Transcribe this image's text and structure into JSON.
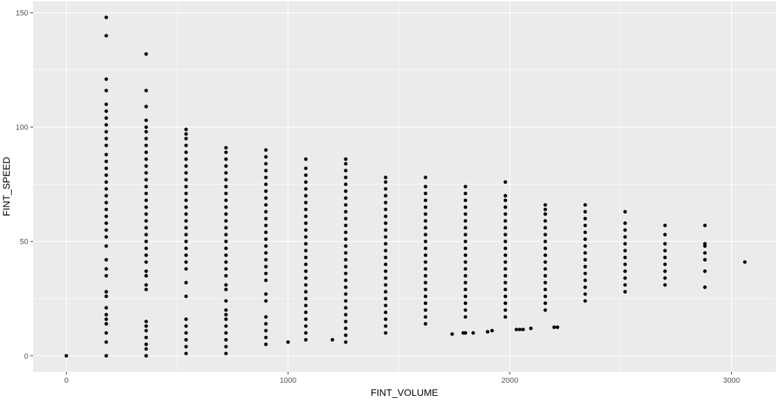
{
  "chart_data": {
    "type": "scatter",
    "title": "",
    "xlabel": "FINT_VOLUME",
    "ylabel": "FINT_SPEED",
    "xlim": [
      -150,
      3200
    ],
    "ylim": [
      -7,
      155
    ],
    "x_ticks": [
      0,
      1000,
      2000,
      3000
    ],
    "y_ticks": [
      0,
      50,
      100,
      150
    ],
    "x_tick_labels": [
      "0",
      "1000",
      "2000",
      "3000"
    ],
    "y_tick_labels": [
      "0",
      "50",
      "100",
      "150"
    ],
    "grid": true,
    "theme": "ggplot2 grey",
    "colors": {
      "panel": "#ebebeb",
      "grid": "#ffffff",
      "point": "#000000",
      "tick_text": "#4d4d4d"
    },
    "points": [
      {
        "x": 0,
        "y": 0
      },
      {
        "x": 180,
        "y": [
          0,
          6,
          10,
          14,
          16,
          18,
          21,
          26,
          28,
          35,
          38,
          42,
          48,
          52,
          55,
          58,
          61,
          64,
          67,
          70,
          73,
          76,
          79,
          82,
          85,
          88,
          92,
          95,
          98,
          101,
          104,
          107,
          110,
          116,
          121,
          140,
          148
        ]
      },
      {
        "x": 360,
        "y": [
          0,
          3,
          5,
          8,
          11,
          13,
          15,
          29,
          31,
          35,
          37,
          41,
          44,
          47,
          50,
          53,
          56,
          59,
          62,
          65,
          68,
          71,
          74,
          77,
          80,
          83,
          86,
          89,
          92,
          95,
          98,
          100,
          103,
          109,
          116,
          132
        ]
      },
      {
        "x": 540,
        "y": [
          1,
          4,
          7,
          10,
          13,
          16,
          26,
          32,
          38,
          41,
          44,
          47,
          50,
          53,
          56,
          59,
          62,
          65,
          68,
          71,
          74,
          77,
          80,
          83,
          86,
          89,
          92,
          95,
          97,
          99
        ]
      },
      {
        "x": 720,
        "y": [
          1,
          4,
          7,
          10,
          13,
          16,
          18,
          20,
          24,
          29,
          31,
          35,
          38,
          41,
          44,
          47,
          50,
          53,
          56,
          59,
          62,
          65,
          68,
          71,
          74,
          77,
          80,
          83,
          86,
          89,
          91
        ]
      },
      {
        "x": 900,
        "y": [
          5,
          8,
          11,
          14,
          17,
          24,
          27,
          33,
          36,
          39,
          42,
          45,
          48,
          51,
          54,
          57,
          60,
          63,
          66,
          69,
          72,
          75,
          78,
          81,
          84,
          87,
          90
        ]
      },
      {
        "x": 1000,
        "y": 6
      },
      {
        "x": 1080,
        "y": [
          7,
          10,
          13,
          16,
          19,
          22,
          25,
          28,
          31,
          34,
          37,
          40,
          43,
          46,
          49,
          52,
          55,
          58,
          61,
          64,
          67,
          70,
          73,
          76,
          79,
          82,
          86
        ]
      },
      {
        "x": 1200,
        "y": 7
      },
      {
        "x": 1260,
        "y": [
          6,
          9,
          12,
          15,
          18,
          21,
          24,
          27,
          30,
          33,
          36,
          39,
          42,
          45,
          48,
          51,
          54,
          57,
          60,
          63,
          66,
          69,
          72,
          75,
          78,
          81,
          84,
          86
        ]
      },
      {
        "x": 1440,
        "y": [
          10,
          13,
          16,
          19,
          22,
          25,
          28,
          31,
          34,
          37,
          40,
          43,
          46,
          49,
          52,
          55,
          58,
          61,
          64,
          67,
          70,
          73,
          76,
          78
        ]
      },
      {
        "x": 1620,
        "y": [
          14,
          17,
          20,
          23,
          26,
          29,
          32,
          35,
          38,
          41,
          44,
          47,
          50,
          53,
          56,
          59,
          62,
          65,
          68,
          71,
          74,
          78
        ]
      },
      {
        "x": 1740,
        "y": 9.5
      },
      {
        "x": 1790,
        "y": 10
      },
      {
        "x": 1800,
        "y": [
          10,
          17,
          20,
          23,
          26,
          29,
          32,
          35,
          38,
          41,
          44,
          47,
          50,
          53,
          56,
          59,
          62,
          65,
          68,
          71,
          74
        ]
      },
      {
        "x": 1835,
        "y": 10
      },
      {
        "x": 1900,
        "y": 10.5
      },
      {
        "x": 1920,
        "y": 11
      },
      {
        "x": 1980,
        "y": [
          17,
          20,
          23,
          26,
          29,
          32,
          35,
          38,
          41,
          44,
          47,
          50,
          53,
          56,
          59,
          62,
          65,
          68,
          70,
          76
        ]
      },
      {
        "x": 2030,
        "y": 11.5
      },
      {
        "x": 2045,
        "y": 11.5
      },
      {
        "x": 2060,
        "y": 11.5
      },
      {
        "x": 2095,
        "y": 12
      },
      {
        "x": 2160,
        "y": [
          20,
          23,
          26,
          29,
          32,
          35,
          38,
          41,
          44,
          47,
          50,
          53,
          56,
          59,
          62,
          64,
          66
        ]
      },
      {
        "x": 2200,
        "y": 12.5
      },
      {
        "x": 2215,
        "y": 12.5
      },
      {
        "x": 2340,
        "y": [
          24,
          27,
          30,
          33,
          36,
          39,
          42,
          45,
          48,
          51,
          54,
          57,
          60,
          63,
          66
        ]
      },
      {
        "x": 2520,
        "y": [
          28,
          31,
          34,
          37,
          40,
          43,
          46,
          49,
          52,
          55,
          58,
          63
        ]
      },
      {
        "x": 2700,
        "y": [
          31,
          34,
          37,
          40,
          43,
          46,
          49,
          53,
          57
        ]
      },
      {
        "x": 2880,
        "y": [
          30,
          37,
          42,
          45,
          48,
          49,
          57
        ]
      },
      {
        "x": 3060,
        "y": 41
      }
    ]
  }
}
